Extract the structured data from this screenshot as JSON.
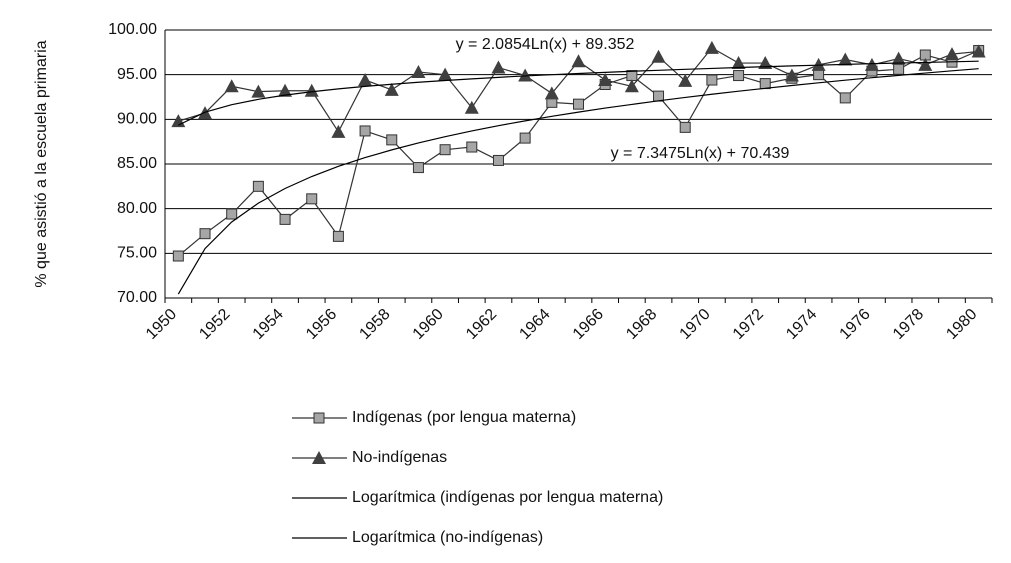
{
  "chart_data": {
    "type": "line",
    "y_label": "% que asistió a la escuela primaria",
    "categories": [
      "1950",
      null,
      "1952",
      null,
      "1954",
      null,
      "1956",
      null,
      "1958",
      null,
      "1960",
      null,
      "1962",
      null,
      "1964",
      null,
      "1966",
      null,
      "1968",
      null,
      "1970",
      null,
      "1972",
      null,
      "1974",
      null,
      "1976",
      null,
      "1978",
      null,
      "1980"
    ],
    "ylim": [
      70,
      100
    ],
    "yticks": [
      {
        "value": 70,
        "label": "70.00"
      },
      {
        "value": 75,
        "label": "75.00"
      },
      {
        "value": 80,
        "label": "80.00"
      },
      {
        "value": 85,
        "label": "85.00"
      },
      {
        "value": 90,
        "label": "90.00"
      },
      {
        "value": 95,
        "label": "95.00"
      },
      {
        "value": 100,
        "label": "100.00"
      }
    ],
    "grid": true,
    "legend": "bottom",
    "annotations": [
      "y = 2.0854Ln(x) + 89.352",
      "y = 7.3475Ln(x) + 70.439"
    ],
    "series": [
      {
        "name": "Indígenas (por lengua materna)",
        "color": "#333333",
        "marker": "square",
        "marker_color": "#a6a6a6",
        "values": [
          74.7,
          77.2,
          79.4,
          82.5,
          78.8,
          81.1,
          76.9,
          88.7,
          87.7,
          84.6,
          86.6,
          86.9,
          85.4,
          87.9,
          91.9,
          91.7,
          93.9,
          94.9,
          92.6,
          89.1,
          94.4,
          94.9,
          94.0,
          94.6,
          95.0,
          92.4,
          95.4,
          95.6,
          97.2,
          96.4,
          97.7
        ]
      },
      {
        "name": "No-indígenas",
        "color": "#333333",
        "marker": "triangle",
        "marker_color": "#404040",
        "values": [
          89.8,
          90.7,
          93.7,
          93.1,
          93.2,
          93.2,
          88.6,
          94.4,
          93.3,
          95.3,
          95.0,
          91.3,
          95.8,
          94.9,
          92.9,
          96.5,
          94.4,
          93.7,
          97.0,
          94.3,
          98.0,
          96.3,
          96.3,
          94.9,
          96.1,
          96.7,
          96.1,
          96.8,
          96.1,
          97.3,
          97.6
        ]
      },
      {
        "name": "Logarítmica (indígenas por lengua materna)",
        "color": "#000000",
        "values": [
          70.44,
          75.53,
          78.51,
          80.62,
          82.26,
          83.6,
          84.74,
          85.72,
          86.58,
          87.36,
          88.06,
          88.7,
          89.29,
          89.83,
          90.34,
          90.81,
          91.26,
          91.67,
          92.07,
          92.45,
          92.81,
          93.15,
          93.47,
          93.79,
          94.09,
          94.38,
          94.66,
          94.92,
          95.18,
          95.43,
          95.67
        ]
      },
      {
        "name": "Logarítmica (no-indígenas)",
        "color": "#000000",
        "values": [
          89.35,
          90.8,
          91.64,
          92.24,
          92.71,
          93.09,
          93.41,
          93.69,
          93.93,
          94.15,
          94.35,
          94.53,
          94.7,
          94.86,
          95.0,
          95.13,
          95.26,
          95.38,
          95.49,
          95.6,
          95.7,
          95.8,
          95.89,
          95.98,
          96.06,
          96.15,
          96.23,
          96.3,
          96.37,
          96.44,
          96.51
        ]
      }
    ]
  }
}
